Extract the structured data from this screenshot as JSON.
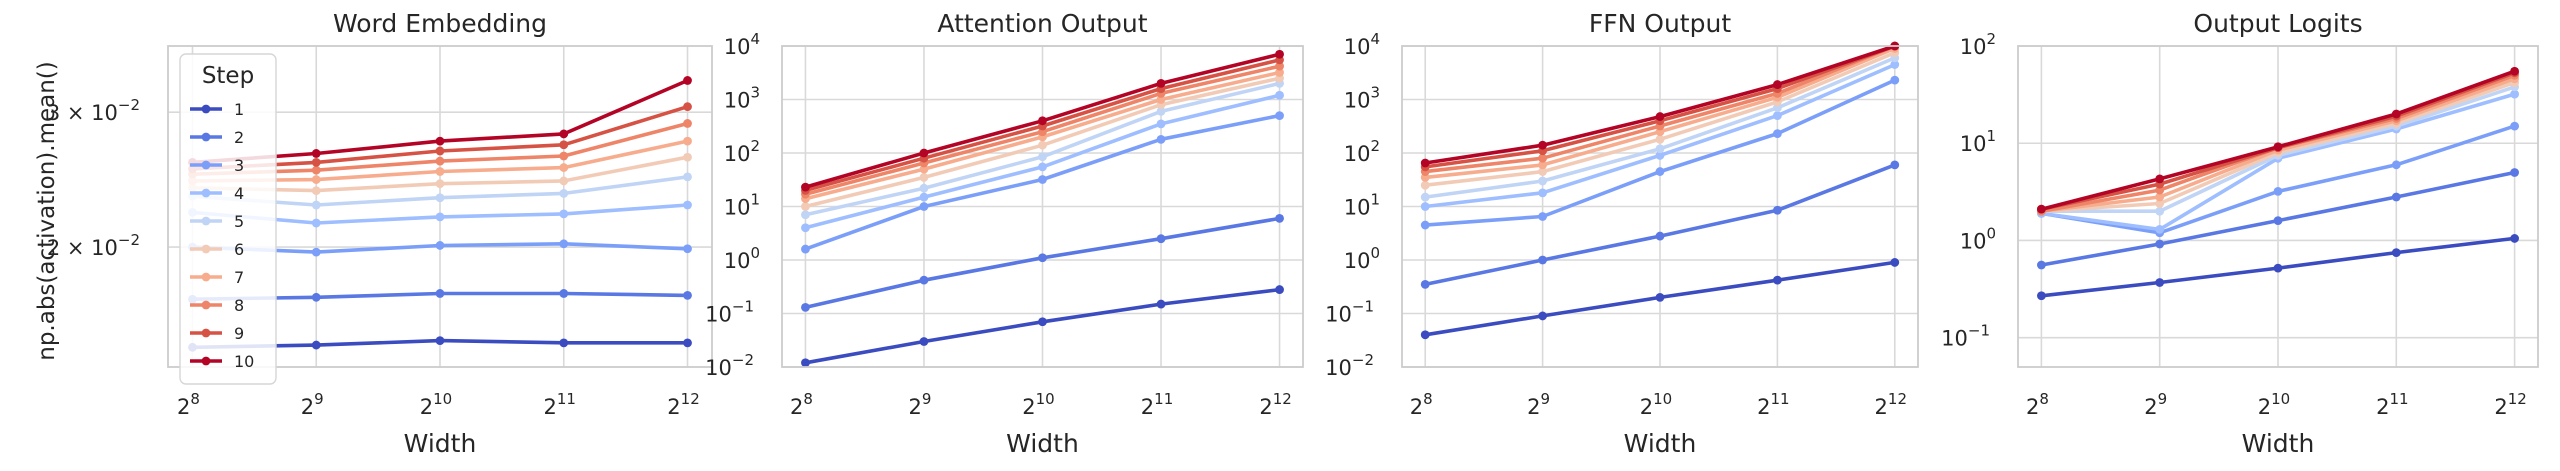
{
  "figure": {
    "ylabel": "np.abs(activation).mean()",
    "legend": {
      "title": "Step",
      "placement": "upper-left of first panel",
      "entries": [
        "1",
        "2",
        "3",
        "4",
        "5",
        "6",
        "7",
        "8",
        "9",
        "10"
      ]
    }
  },
  "palette": [
    "#3b4cc0",
    "#5978e3",
    "#7b9ff9",
    "#9ebeff",
    "#c0d4f5",
    "#dddcdc",
    "#f2cbb7",
    "#f7ac8e",
    "#ee8468",
    "#d65244",
    "#b40426"
  ],
  "chart_data": [
    {
      "type": "line",
      "title": "Word Embedding",
      "xlabel": "Width",
      "x": [
        256,
        512,
        1024,
        2048,
        4096
      ],
      "xticks": [
        {
          "base": "2",
          "exp": "8"
        },
        {
          "base": "2",
          "exp": "9"
        },
        {
          "base": "2",
          "exp": "10"
        },
        {
          "base": "2",
          "exp": "11"
        },
        {
          "base": "2",
          "exp": "12"
        }
      ],
      "yscale": "log",
      "ylim": [
        0.01395,
        0.0366
      ],
      "yticks": [
        {
          "value": 0.02,
          "mant": "2 × 10",
          "exp": "−2"
        },
        {
          "value": 0.03,
          "mant": "3 × 10",
          "exp": "−2"
        }
      ],
      "grid": true,
      "legend": true,
      "series": [
        {
          "name": "1",
          "values": [
            0.0148,
            0.0149,
            0.0151,
            0.015,
            0.015
          ]
        },
        {
          "name": "2",
          "values": [
            0.0171,
            0.0172,
            0.0174,
            0.0174,
            0.0173
          ]
        },
        {
          "name": "3",
          "values": [
            0.02,
            0.0197,
            0.0201,
            0.0202,
            0.0199
          ]
        },
        {
          "name": "4",
          "values": [
            0.0222,
            0.0215,
            0.0219,
            0.0221,
            0.0227
          ]
        },
        {
          "name": "5",
          "values": [
            0.0233,
            0.0227,
            0.0232,
            0.0235,
            0.0247
          ]
        },
        {
          "name": "6",
          "values": [
            0.0239,
            0.0237,
            0.0242,
            0.0244,
            0.0262
          ]
        },
        {
          "name": "7",
          "values": [
            0.0244,
            0.0245,
            0.0251,
            0.0254,
            0.0275
          ]
        },
        {
          "name": "8",
          "values": [
            0.0249,
            0.0252,
            0.0259,
            0.0263,
            0.029
          ]
        },
        {
          "name": "9",
          "values": [
            0.0253,
            0.0258,
            0.0267,
            0.0272,
            0.0305
          ]
        },
        {
          "name": "10",
          "values": [
            0.0258,
            0.0265,
            0.0275,
            0.0281,
            0.033
          ]
        }
      ]
    },
    {
      "type": "line",
      "title": "Attention Output",
      "xlabel": "Width",
      "x": [
        256,
        512,
        1024,
        2048,
        4096
      ],
      "xticks": [
        {
          "base": "2",
          "exp": "8"
        },
        {
          "base": "2",
          "exp": "9"
        },
        {
          "base": "2",
          "exp": "10"
        },
        {
          "base": "2",
          "exp": "11"
        },
        {
          "base": "2",
          "exp": "12"
        }
      ],
      "yscale": "log",
      "ylim": [
        0.01,
        10000
      ],
      "yticks": [
        {
          "value": 0.01,
          "mant": "10",
          "exp": "−2"
        },
        {
          "value": 0.1,
          "mant": "10",
          "exp": "−1"
        },
        {
          "value": 1,
          "mant": "10",
          "exp": "0"
        },
        {
          "value": 10,
          "mant": "10",
          "exp": "1"
        },
        {
          "value": 100,
          "mant": "10",
          "exp": "2"
        },
        {
          "value": 1000,
          "mant": "10",
          "exp": "3"
        },
        {
          "value": 10000,
          "mant": "10",
          "exp": "4"
        }
      ],
      "grid": true,
      "legend": false,
      "series": [
        {
          "name": "1",
          "values": [
            0.012,
            0.03,
            0.07,
            0.15,
            0.28
          ]
        },
        {
          "name": "2",
          "values": [
            0.13,
            0.42,
            1.1,
            2.5,
            6.0
          ]
        },
        {
          "name": "3",
          "values": [
            1.6,
            10,
            32,
            180,
            500
          ]
        },
        {
          "name": "4",
          "values": [
            4,
            15,
            55,
            350,
            1200
          ]
        },
        {
          "name": "5",
          "values": [
            7,
            22,
            85,
            600,
            2000
          ]
        },
        {
          "name": "6",
          "values": [
            10,
            35,
            140,
            800,
            2500
          ]
        },
        {
          "name": "7",
          "values": [
            14,
            50,
            200,
            1000,
            3200
          ]
        },
        {
          "name": "8",
          "values": [
            17,
            65,
            250,
            1300,
            4200
          ]
        },
        {
          "name": "9",
          "values": [
            20,
            80,
            320,
            1600,
            5500
          ]
        },
        {
          "name": "10",
          "values": [
            23,
            100,
            400,
            2000,
            7000
          ]
        }
      ]
    },
    {
      "type": "line",
      "title": "FFN Output",
      "xlabel": "Width",
      "x": [
        256,
        512,
        1024,
        2048,
        4096
      ],
      "xticks": [
        {
          "base": "2",
          "exp": "8"
        },
        {
          "base": "2",
          "exp": "9"
        },
        {
          "base": "2",
          "exp": "10"
        },
        {
          "base": "2",
          "exp": "11"
        },
        {
          "base": "2",
          "exp": "12"
        }
      ],
      "yscale": "log",
      "ylim": [
        0.01,
        10000
      ],
      "yticks": [
        {
          "value": 0.01,
          "mant": "10",
          "exp": "−2"
        },
        {
          "value": 0.1,
          "mant": "10",
          "exp": "−1"
        },
        {
          "value": 1,
          "mant": "10",
          "exp": "0"
        },
        {
          "value": 10,
          "mant": "10",
          "exp": "1"
        },
        {
          "value": 100,
          "mant": "10",
          "exp": "2"
        },
        {
          "value": 1000,
          "mant": "10",
          "exp": "3"
        },
        {
          "value": 10000,
          "mant": "10",
          "exp": "4"
        }
      ],
      "grid": true,
      "legend": false,
      "series": [
        {
          "name": "1",
          "values": [
            0.04,
            0.09,
            0.2,
            0.42,
            0.9
          ]
        },
        {
          "name": "2",
          "values": [
            0.35,
            1.0,
            2.8,
            8.5,
            60
          ]
        },
        {
          "name": "3",
          "values": [
            4.5,
            6.5,
            45,
            230,
            2300
          ]
        },
        {
          "name": "4",
          "values": [
            10,
            18,
            90,
            500,
            4500
          ]
        },
        {
          "name": "5",
          "values": [
            15,
            30,
            120,
            700,
            6000
          ]
        },
        {
          "name": "6",
          "values": [
            25,
            45,
            180,
            900,
            7500
          ]
        },
        {
          "name": "7",
          "values": [
            35,
            60,
            250,
            1100,
            9000
          ]
        },
        {
          "name": "8",
          "values": [
            45,
            80,
            320,
            1300,
            10000
          ]
        },
        {
          "name": "9",
          "values": [
            55,
            110,
            400,
            1600,
            10000
          ]
        },
        {
          "name": "10",
          "values": [
            65,
            140,
            480,
            1900,
            10000
          ]
        }
      ]
    },
    {
      "type": "line",
      "title": "Output Logits",
      "xlabel": "Width",
      "x": [
        256,
        512,
        1024,
        2048,
        4096
      ],
      "xticks": [
        {
          "base": "2",
          "exp": "8"
        },
        {
          "base": "2",
          "exp": "9"
        },
        {
          "base": "2",
          "exp": "10"
        },
        {
          "base": "2",
          "exp": "11"
        },
        {
          "base": "2",
          "exp": "12"
        }
      ],
      "yscale": "log",
      "ylim": [
        0.05,
        100
      ],
      "yticks": [
        {
          "value": 0.1,
          "mant": "10",
          "exp": "−1"
        },
        {
          "value": 1,
          "mant": "10",
          "exp": "0"
        },
        {
          "value": 10,
          "mant": "10",
          "exp": "1"
        },
        {
          "value": 100,
          "mant": "10",
          "exp": "2"
        }
      ],
      "grid": true,
      "legend": false,
      "series": [
        {
          "name": "1",
          "values": [
            0.27,
            0.37,
            0.52,
            0.75,
            1.05
          ]
        },
        {
          "name": "2",
          "values": [
            0.56,
            0.92,
            1.6,
            2.8,
            5.0
          ]
        },
        {
          "name": "3",
          "values": [
            1.9,
            1.2,
            3.2,
            6.0,
            15
          ]
        },
        {
          "name": "4",
          "values": [
            1.9,
            1.3,
            7.0,
            14,
            32
          ]
        },
        {
          "name": "5",
          "values": [
            2.0,
            2.0,
            7.5,
            15,
            38
          ]
        },
        {
          "name": "6",
          "values": [
            2.0,
            2.4,
            8.0,
            16,
            42
          ]
        },
        {
          "name": "7",
          "values": [
            2.0,
            2.8,
            8.5,
            17,
            46
          ]
        },
        {
          "name": "8",
          "values": [
            2.0,
            3.3,
            9.0,
            18,
            50
          ]
        },
        {
          "name": "9",
          "values": [
            2.1,
            3.8,
            9.0,
            19,
            53
          ]
        },
        {
          "name": "10",
          "values": [
            2.1,
            4.3,
            9.2,
            20,
            55
          ]
        }
      ]
    }
  ]
}
